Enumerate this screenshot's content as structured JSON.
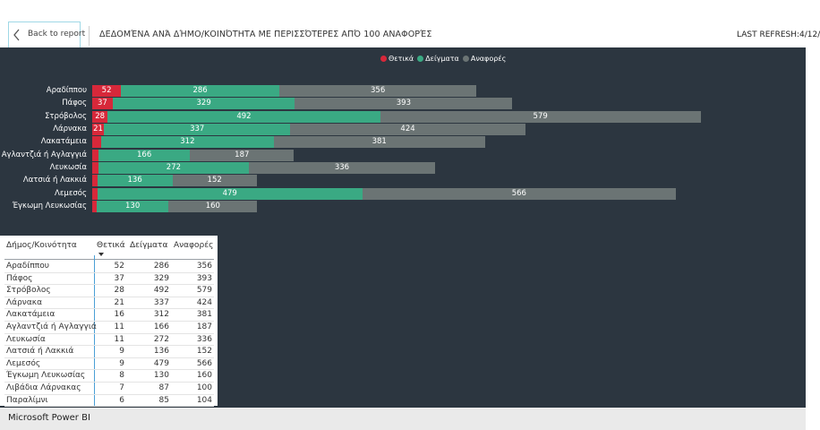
{
  "header": {
    "back_label": "Back to report",
    "title": "ΔΕΔΟΜΈΝΑ ΑΝΆ ΔΉΜΟ/ΚΟΙΝΌΤΗΤΑ ΜΕ ΠΕΡΙΣΣΌΤΕΡΕΣ ΑΠΌ 100 ΑΝΑΦΟΡΈΣ",
    "refresh": "LAST REFRESH:4/12/"
  },
  "legend": [
    {
      "label": "Θετικά",
      "color": "#d7283a"
    },
    {
      "label": "Δείγματα",
      "color": "#3aa983"
    },
    {
      "label": "Αναφορές",
      "color": "#6b7474"
    }
  ],
  "colors": {
    "positive": "#d7283a",
    "samples": "#3aa983",
    "reports": "#6b7474",
    "background": "#2c3640"
  },
  "chart_data": {
    "type": "bar",
    "orientation": "horizontal",
    "stacked": true,
    "categories": [
      "Αραδίππου",
      "Πάφος",
      "Στρόβολος",
      "Λάρνακα",
      "Λακατάμεια",
      "Αγλαντζιά ή Αγλαγγιά",
      "Λευκωσία",
      "Λατσιά ή Λακκιά",
      "Λεμεσός",
      "Έγκωμη Λευκωσίας"
    ],
    "series": [
      {
        "name": "Θετικά",
        "values": [
          52,
          37,
          28,
          21,
          16,
          11,
          11,
          9,
          9,
          8
        ]
      },
      {
        "name": "Δείγματα",
        "values": [
          286,
          329,
          492,
          337,
          312,
          166,
          272,
          136,
          479,
          130
        ]
      },
      {
        "name": "Αναφορές",
        "values": [
          356,
          393,
          579,
          424,
          381,
          187,
          336,
          152,
          566,
          160
        ]
      }
    ],
    "legend_position": "top-center",
    "grid": false
  },
  "table": {
    "columns": [
      "Δήμος/Κοινότητα",
      "Θετικά",
      "Δείγματα",
      "Αναφορές"
    ],
    "rows": [
      [
        "Αραδίππου",
        "52",
        "286",
        "356"
      ],
      [
        "Πάφος",
        "37",
        "329",
        "393"
      ],
      [
        "Στρόβολος",
        "28",
        "492",
        "579"
      ],
      [
        "Λάρνακα",
        "21",
        "337",
        "424"
      ],
      [
        "Λακατάμεια",
        "16",
        "312",
        "381"
      ],
      [
        "Αγλαντζιά ή Αγλαγγιά",
        "11",
        "166",
        "187"
      ],
      [
        "Λευκωσία",
        "11",
        "272",
        "336"
      ],
      [
        "Λατσιά ή Λακκιά",
        "9",
        "136",
        "152"
      ],
      [
        "Λεμεσός",
        "9",
        "479",
        "566"
      ],
      [
        "Έγκωμη Λευκωσίας",
        "8",
        "130",
        "160"
      ],
      [
        "Λιβάδια Λάρνακας",
        "7",
        "87",
        "100"
      ],
      [
        "Παραλίμνι",
        "6",
        "85",
        "104"
      ]
    ]
  },
  "footer": {
    "brand": "Microsoft Power BI"
  }
}
